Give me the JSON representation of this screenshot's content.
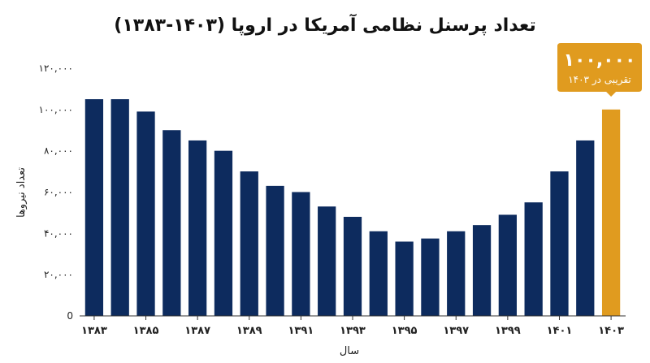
{
  "chart_data": {
    "type": "bar",
    "title": "تعداد پرسنل نظامی آمریکا در اروپا (۱۴۰۳-۱۳۸۳)",
    "xlabel": "سال",
    "ylabel": "تعداد نیروها",
    "ylim": [
      0,
      120000
    ],
    "yticks": [
      0,
      20000,
      40000,
      60000,
      80000,
      100000,
      120000
    ],
    "ytick_labels": [
      "0",
      "۲۰,۰۰۰",
      "۴۰,۰۰۰",
      "۶۰,۰۰۰",
      "۸۰,۰۰۰",
      "۱۰۰,۰۰۰",
      "۱۲۰,۰۰۰"
    ],
    "categories": [
      "۱۳۸۳",
      "۱۳۸۴",
      "۱۳۸۵",
      "۱۳۸۶",
      "۱۳۸۷",
      "۱۳۸۸",
      "۱۳۸۹",
      "۱۳۹۰",
      "۱۳۹۱",
      "۱۳۹۲",
      "۱۳۹۳",
      "۱۳۹۴",
      "۱۳۹۵",
      "۱۳۹۶",
      "۱۳۹۷",
      "۱۳۹۸",
      "۱۳۹۹",
      "۱۴۰۰",
      "۱۴۰۱",
      "۱۴۰۲",
      "۱۴۰۳"
    ],
    "xtick_labels": [
      "۱۳۸۳",
      "",
      "۱۳۸۵",
      "",
      "۱۳۸۷",
      "",
      "۱۳۸۹",
      "",
      "۱۳۹۱",
      "",
      "۱۳۹۳",
      "",
      "۱۳۹۵",
      "",
      "۱۳۹۷",
      "",
      "۱۳۹۹",
      "",
      "۱۴۰۱",
      "",
      "۱۴۰۳"
    ],
    "values": [
      105000,
      105000,
      99000,
      90000,
      85000,
      80000,
      70000,
      63000,
      60000,
      53000,
      48000,
      41000,
      36000,
      37500,
      41000,
      44000,
      49000,
      55000,
      70000,
      85000,
      100000
    ],
    "highlight_index": 20,
    "grid": false,
    "colors": {
      "bar": "#0d2b5e",
      "highlight": "#e09b1f",
      "axis": "#333333"
    },
    "callout": {
      "value": "۱۰۰,۰۰۰",
      "note": "تقریبی در ۱۴۰۳"
    }
  }
}
